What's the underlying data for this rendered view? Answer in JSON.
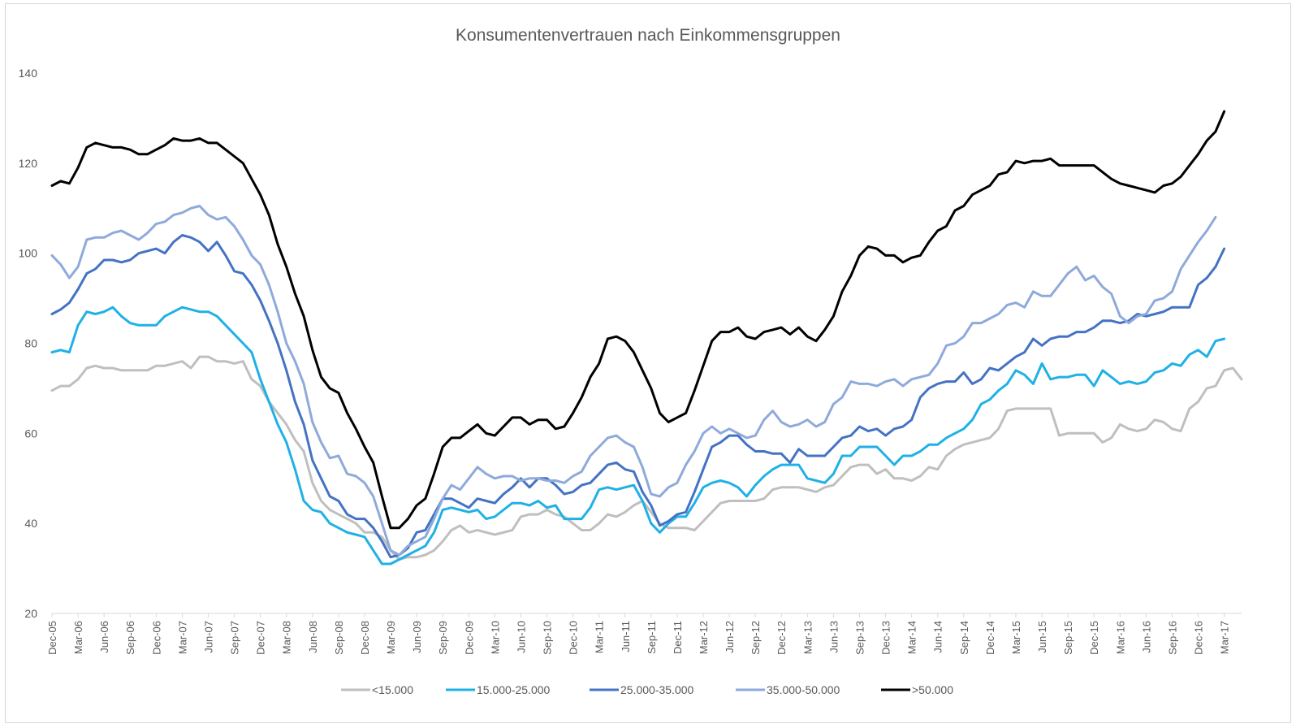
{
  "chart_data": {
    "type": "line",
    "title": "Konsumentenvertrauen nach Einkommensgruppen",
    "xlabel": "",
    "ylabel": "",
    "ylim": [
      20,
      140
    ],
    "yticks": [
      "20",
      "40",
      "60",
      "80",
      "100",
      "120",
      "140"
    ],
    "grid": false,
    "legend_position": "bottom",
    "x_labels": [
      "Dec-05",
      "Mar-06",
      "Jun-06",
      "Sep-06",
      "Dec-06",
      "Mar-07",
      "Jun-07",
      "Sep-07",
      "Dec-07",
      "Mar-08",
      "Jun-08",
      "Sep-08",
      "Dec-08",
      "Mar-09",
      "Jun-09",
      "Sep-09",
      "Dec-09",
      "Mar-10",
      "Jun-10",
      "Sep-10",
      "Dec-10",
      "Mar-11",
      "Jun-11",
      "Sep-11",
      "Dec-11",
      "Mar-12",
      "Jun-12",
      "Sep-12",
      "Dec-12",
      "Mar-13",
      "Jun-13",
      "Sep-13",
      "Dec-13",
      "Mar-14",
      "Jun-14",
      "Sep-14",
      "Dec-14",
      "Mar-15",
      "Jun-15",
      "Sep-15",
      "Dec-15",
      "Mar-16",
      "Jun-16",
      "Sep-16",
      "Dec-16",
      "Mar-17"
    ],
    "series": [
      {
        "name": "<15.000",
        "color": "#bfbfbf",
        "values": [
          69.5,
          70.5,
          70.5,
          72,
          74.5,
          75,
          74.5,
          74.5,
          74,
          74,
          74,
          74,
          75,
          75,
          75.5,
          76,
          74.5,
          77,
          77,
          76,
          76,
          75.5,
          76,
          72,
          70.5,
          67,
          64.5,
          62,
          58.5,
          56,
          49,
          45,
          43,
          42,
          41,
          40,
          38,
          38,
          37,
          34,
          32,
          32.5,
          32.5,
          33,
          34,
          36,
          38.5,
          39.5,
          38,
          38.5,
          38,
          37.5,
          38,
          38.5,
          41.5,
          42,
          42,
          43,
          42,
          41.5,
          40,
          38.5,
          38.5,
          40,
          42,
          41.5,
          42.5,
          44,
          45,
          42.5,
          40,
          39,
          39,
          39,
          38.5,
          40.5,
          42.5,
          44.5,
          45,
          45,
          45,
          45,
          45.5,
          47.5,
          48,
          48,
          48,
          47.5,
          47,
          48,
          48.5,
          50.5,
          52.5,
          53,
          53,
          51,
          52,
          50,
          50,
          49.5,
          50.5,
          52.5,
          52,
          55,
          56.5,
          57.5,
          58,
          58.5,
          59,
          61,
          65,
          65.5,
          65.5,
          65.5,
          65.5,
          65.5,
          59.5,
          60,
          60,
          60,
          60,
          58,
          59,
          62,
          61,
          60.5,
          61,
          63,
          62.5,
          61,
          60.5,
          65.5,
          67,
          70,
          70.5,
          74,
          74.5,
          72
        ]
      },
      {
        "name": "15.000-25.000",
        "color": "#1fb1e6",
        "values": [
          78,
          78.5,
          78,
          84,
          87,
          86.5,
          87,
          88,
          86,
          84.5,
          84,
          84,
          84,
          86,
          87,
          88,
          87.5,
          87,
          87,
          86,
          84,
          82,
          80,
          78,
          72,
          67,
          62,
          58,
          52,
          45,
          43,
          42.5,
          40,
          39,
          38,
          37.5,
          37,
          34,
          31,
          31,
          32,
          33,
          34,
          35,
          38,
          43,
          43.5,
          43,
          42.5,
          43,
          41,
          41.5,
          43,
          44.5,
          44.5,
          44,
          45,
          43.5,
          44,
          41,
          41,
          41,
          43.5,
          47.5,
          48,
          47.5,
          48,
          48.5,
          45,
          40,
          38,
          40,
          41.5,
          41.5,
          44.5,
          48,
          49,
          49.5,
          49,
          48,
          46,
          48.5,
          50.5,
          52,
          53,
          53,
          53,
          50,
          49.5,
          49,
          51,
          55,
          55,
          57,
          57,
          57,
          55,
          53,
          55,
          55,
          56,
          57.5,
          57.5,
          59,
          60,
          61,
          63,
          66.5,
          67.5,
          69.5,
          71,
          74,
          73,
          71,
          75.5,
          72,
          72.5,
          72.5,
          73,
          73,
          70.5,
          74,
          72.5,
          71,
          71.5,
          71,
          71.5,
          73.5,
          74,
          75.5,
          75,
          77.5,
          78.5,
          77,
          80.5,
          81
        ]
      },
      {
        "name": "25.000-35.000",
        "color": "#4472c4",
        "values": [
          86.5,
          87.5,
          89,
          92,
          95.5,
          96.5,
          98.5,
          98.5,
          98,
          98.5,
          100,
          100.5,
          101,
          100,
          102.5,
          104,
          103.5,
          102.5,
          100.5,
          102.5,
          99.5,
          96,
          95.5,
          93,
          89.5,
          85,
          80,
          74,
          67,
          62,
          54,
          50,
          46,
          45,
          42,
          41,
          41,
          39,
          36,
          32.5,
          33,
          34.5,
          38,
          38.5,
          42,
          45.5,
          45.5,
          44.5,
          43.5,
          45.5,
          45,
          44.5,
          46.5,
          48,
          50,
          48,
          50,
          50,
          48.5,
          46.5,
          47,
          48.5,
          49,
          51,
          53,
          53.5,
          52,
          51.5,
          47,
          44,
          39.5,
          40.5,
          42,
          42.5,
          47,
          52,
          57,
          58,
          59.5,
          59.5,
          57.5,
          56,
          56,
          55.5,
          55.5,
          53.5,
          56.5,
          55,
          55,
          55,
          57,
          59,
          59.5,
          61.5,
          60.5,
          61,
          59.5,
          61,
          61.5,
          63,
          68,
          70,
          71,
          71.5,
          71.5,
          73.5,
          71,
          72,
          74.5,
          74,
          75.5,
          77,
          78,
          81,
          79.5,
          81,
          81.5,
          81.5,
          82.5,
          82.5,
          83.5,
          85,
          85,
          84.5,
          85,
          86.5,
          86,
          86.5,
          87,
          88,
          88,
          88,
          93,
          94.5,
          97,
          101
        ]
      },
      {
        "name": "35.000-50.000",
        "color": "#8eaadb",
        "values": [
          99.5,
          97.5,
          94.5,
          97,
          103,
          103.5,
          103.5,
          104.5,
          105,
          104,
          103,
          104.5,
          106.5,
          107,
          108.5,
          109,
          110,
          110.5,
          108.5,
          107.5,
          108,
          106,
          103,
          99.5,
          97.5,
          93,
          87,
          80,
          76,
          71,
          62.5,
          58,
          54.5,
          55,
          51,
          50.5,
          49,
          46,
          40,
          34,
          33,
          35,
          36,
          37,
          41,
          45.5,
          48.5,
          47.5,
          50,
          52.5,
          51,
          50,
          50.5,
          50.5,
          49.5,
          50,
          50,
          49.5,
          49.5,
          49,
          50.5,
          51.5,
          55,
          57,
          59,
          59.5,
          58,
          57,
          52.5,
          46.5,
          46,
          48,
          49,
          53,
          56,
          60,
          61.5,
          60,
          61,
          60,
          59,
          59.5,
          63,
          65,
          62.5,
          61.5,
          62,
          63,
          61.5,
          62.5,
          66.5,
          68,
          71.5,
          71,
          71,
          70.5,
          71.5,
          72,
          70.5,
          72,
          72.5,
          73,
          75.5,
          79.5,
          80,
          81.5,
          84.5,
          84.5,
          85.5,
          86.5,
          88.5,
          89,
          88,
          91.5,
          90.5,
          90.5,
          93,
          95.5,
          97,
          94,
          95,
          92.5,
          91,
          86,
          84.5,
          86,
          86.5,
          89.5,
          90,
          91.5,
          96.5,
          99.5,
          102.5,
          105,
          108
        ]
      },
      {
        "name": ">50.000",
        "color": "#000000",
        "values": [
          115,
          116,
          115.5,
          119,
          123.5,
          124.5,
          124,
          123.5,
          123.5,
          123,
          122,
          122,
          123,
          124,
          125.5,
          125,
          125,
          125.5,
          124.5,
          124.5,
          123,
          121.5,
          120,
          116.5,
          113,
          108.5,
          102,
          97,
          91,
          86,
          78.5,
          72.5,
          70,
          69,
          64.5,
          61,
          57,
          53.5,
          46,
          39,
          39,
          41,
          44,
          45.5,
          51,
          57,
          59,
          59,
          60.5,
          62,
          60,
          59.5,
          61.5,
          63.5,
          63.5,
          62,
          63,
          63,
          61,
          61.5,
          64.5,
          68,
          72.5,
          75.5,
          81,
          81.5,
          80.5,
          78,
          74,
          70,
          64.5,
          62.5,
          63.5,
          64.5,
          69.5,
          75,
          80.5,
          82.5,
          82.5,
          83.5,
          81.5,
          81,
          82.5,
          83,
          83.5,
          82,
          83.5,
          81.5,
          80.5,
          83,
          86,
          91.5,
          95,
          99.5,
          101.5,
          101,
          99.5,
          99.5,
          98,
          99,
          99.5,
          102.5,
          105,
          106,
          109.5,
          110.5,
          113,
          114,
          115,
          117.5,
          118,
          120.5,
          120,
          120.5,
          120.5,
          121,
          119.5,
          119.5,
          119.5,
          119.5,
          119.5,
          118,
          116.5,
          115.5,
          115,
          114.5,
          114,
          113.5,
          115,
          115.5,
          117,
          119.5,
          122,
          125,
          127,
          131.5
        ]
      }
    ]
  }
}
